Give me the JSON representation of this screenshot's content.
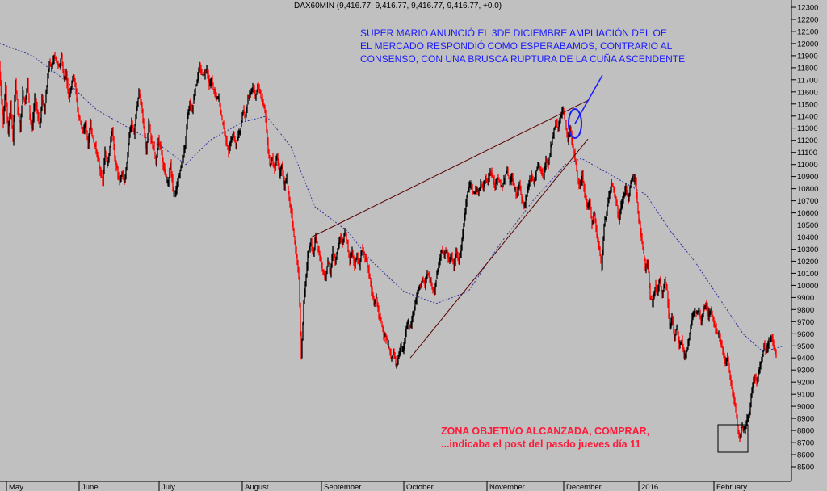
{
  "chart_data": {
    "type": "candlestick",
    "title": "DAX60MIN (9,416.77, 9,416.77, 9,416.77, 9,416.77, +0.0)",
    "ylim": [
      8450,
      12350
    ],
    "y_ticks": [
      8500,
      8600,
      8700,
      8800,
      8900,
      9000,
      9100,
      9200,
      9300,
      9400,
      9500,
      9600,
      9700,
      9800,
      9900,
      10000,
      10100,
      10200,
      10300,
      10400,
      10500,
      10600,
      10700,
      10800,
      10900,
      11000,
      11100,
      11200,
      11300,
      11400,
      11500,
      11600,
      11700,
      11800,
      11900,
      12000,
      12100,
      12200,
      12300
    ],
    "x_ticks": [
      "May",
      "June",
      "July",
      "August",
      "September",
      "October",
      "November",
      "December",
      "2016",
      "February"
    ],
    "grid": false,
    "price_path": [
      [
        0,
        11850
      ],
      [
        2,
        11600
      ],
      [
        5,
        11350
      ],
      [
        8,
        11650
      ],
      [
        11,
        11250
      ],
      [
        14,
        11500
      ],
      [
        17,
        11200
      ],
      [
        20,
        11700
      ],
      [
        23,
        11450
      ],
      [
        26,
        11300
      ],
      [
        29,
        11600
      ],
      [
        32,
        11500
      ],
      [
        35,
        11700
      ],
      [
        38,
        11400
      ],
      [
        41,
        11300
      ],
      [
        44,
        11550
      ],
      [
        47,
        11450
      ],
      [
        50,
        11300
      ],
      [
        53,
        11550
      ],
      [
        56,
        11450
      ],
      [
        59,
        11650
      ],
      [
        62,
        11850
      ],
      [
        65,
        11800
      ],
      [
        68,
        11900
      ],
      [
        71,
        11850
      ],
      [
        74,
        11800
      ],
      [
        77,
        11900
      ],
      [
        80,
        11700
      ],
      [
        83,
        11750
      ],
      [
        86,
        11550
      ],
      [
        89,
        11650
      ],
      [
        92,
        11750
      ],
      [
        95,
        11600
      ],
      [
        98,
        11400
      ],
      [
        101,
        11350
      ],
      [
        104,
        11250
      ],
      [
        107,
        11350
      ],
      [
        110,
        11150
      ],
      [
        113,
        11350
      ],
      [
        116,
        11200
      ],
      [
        119,
        11150
      ],
      [
        122,
        11050
      ],
      [
        125,
        10950
      ],
      [
        128,
        10850
      ],
      [
        131,
        11100
      ],
      [
        134,
        11000
      ],
      [
        137,
        11150
      ],
      [
        140,
        11300
      ],
      [
        143,
        11050
      ],
      [
        146,
        10950
      ],
      [
        149,
        10850
      ],
      [
        152,
        10950
      ],
      [
        155,
        10850
      ],
      [
        158,
        11000
      ],
      [
        161,
        11250
      ],
      [
        164,
        11350
      ],
      [
        167,
        11250
      ],
      [
        170,
        11450
      ],
      [
        173,
        11600
      ],
      [
        176,
        11500
      ],
      [
        179,
        11300
      ],
      [
        182,
        11100
      ],
      [
        185,
        11350
      ],
      [
        188,
        11200
      ],
      [
        191,
        11150
      ],
      [
        194,
        11000
      ],
      [
        197,
        11200
      ],
      [
        200,
        11150
      ],
      [
        203,
        11000
      ],
      [
        206,
        10900
      ],
      [
        209,
        10850
      ],
      [
        212,
        11000
      ],
      [
        215,
        10800
      ],
      [
        218,
        10750
      ],
      [
        221,
        10850
      ],
      [
        224,
        10950
      ],
      [
        227,
        11050
      ],
      [
        230,
        11150
      ],
      [
        233,
        11400
      ],
      [
        236,
        11500
      ],
      [
        239,
        11450
      ],
      [
        242,
        11600
      ],
      [
        245,
        11700
      ],
      [
        248,
        11800
      ],
      [
        251,
        11750
      ],
      [
        254,
        11750
      ],
      [
        257,
        11800
      ],
      [
        260,
        11650
      ],
      [
        263,
        11700
      ],
      [
        266,
        11600
      ],
      [
        269,
        11550
      ],
      [
        272,
        11550
      ],
      [
        275,
        11400
      ],
      [
        278,
        11300
      ],
      [
        281,
        11200
      ],
      [
        284,
        11100
      ],
      [
        287,
        11200
      ],
      [
        290,
        11250
      ],
      [
        293,
        11150
      ],
      [
        296,
        11250
      ],
      [
        299,
        11300
      ],
      [
        302,
        11450
      ],
      [
        305,
        11400
      ],
      [
        308,
        11550
      ],
      [
        311,
        11600
      ],
      [
        314,
        11650
      ],
      [
        317,
        11550
      ],
      [
        320,
        11650
      ],
      [
        323,
        11600
      ],
      [
        326,
        11500
      ],
      [
        329,
        11450
      ],
      [
        332,
        11200
      ],
      [
        335,
        11000
      ],
      [
        338,
        11050
      ],
      [
        341,
        10950
      ],
      [
        344,
        11100
      ],
      [
        347,
        10900
      ],
      [
        350,
        11000
      ],
      [
        353,
        10800
      ],
      [
        356,
        10900
      ],
      [
        359,
        10700
      ],
      [
        362,
        10600
      ],
      [
        365,
        10400
      ],
      [
        368,
        10250
      ],
      [
        371,
        10050
      ],
      [
        374,
        9400
      ],
      [
        377,
        9850
      ],
      [
        380,
        10100
      ],
      [
        383,
        10300
      ],
      [
        386,
        10350
      ],
      [
        389,
        10250
      ],
      [
        392,
        10400
      ],
      [
        395,
        10300
      ],
      [
        398,
        10200
      ],
      [
        401,
        10100
      ],
      [
        404,
        10050
      ],
      [
        407,
        10200
      ],
      [
        410,
        10100
      ],
      [
        413,
        10300
      ],
      [
        416,
        10200
      ],
      [
        419,
        10300
      ],
      [
        422,
        10400
      ],
      [
        425,
        10350
      ],
      [
        428,
        10450
      ],
      [
        431,
        10350
      ],
      [
        434,
        10200
      ],
      [
        437,
        10300
      ],
      [
        440,
        10150
      ],
      [
        443,
        10250
      ],
      [
        446,
        10150
      ],
      [
        449,
        10300
      ],
      [
        452,
        10250
      ],
      [
        455,
        10200
      ],
      [
        458,
        10100
      ],
      [
        461,
        9950
      ],
      [
        464,
        9850
      ],
      [
        467,
        9900
      ],
      [
        470,
        9750
      ],
      [
        473,
        9700
      ],
      [
        476,
        9600
      ],
      [
        479,
        9550
      ],
      [
        482,
        9500
      ],
      [
        485,
        9400
      ],
      [
        488,
        9450
      ],
      [
        491,
        9350
      ],
      [
        494,
        9400
      ],
      [
        497,
        9500
      ],
      [
        500,
        9450
      ],
      [
        503,
        9600
      ],
      [
        506,
        9700
      ],
      [
        509,
        9650
      ],
      [
        512,
        9750
      ],
      [
        515,
        9850
      ],
      [
        518,
        9950
      ],
      [
        521,
        10000
      ],
      [
        524,
        10050
      ],
      [
        527,
        10000
      ],
      [
        530,
        10100
      ],
      [
        533,
        10050
      ],
      [
        536,
        10000
      ],
      [
        539,
        9950
      ],
      [
        542,
        10100
      ],
      [
        545,
        10200
      ],
      [
        548,
        10300
      ],
      [
        551,
        10250
      ],
      [
        554,
        10300
      ],
      [
        557,
        10200
      ],
      [
        560,
        10250
      ],
      [
        563,
        10150
      ],
      [
        566,
        10300
      ],
      [
        569,
        10200
      ],
      [
        572,
        10300
      ],
      [
        575,
        10500
      ],
      [
        578,
        10700
      ],
      [
        581,
        10800
      ],
      [
        584,
        10850
      ],
      [
        587,
        10750
      ],
      [
        590,
        10800
      ],
      [
        593,
        10750
      ],
      [
        596,
        10850
      ],
      [
        599,
        10800
      ],
      [
        602,
        10900
      ],
      [
        605,
        10850
      ],
      [
        608,
        10950
      ],
      [
        611,
        10900
      ],
      [
        614,
        10800
      ],
      [
        617,
        10900
      ],
      [
        620,
        10850
      ],
      [
        623,
        10800
      ],
      [
        626,
        10900
      ],
      [
        629,
        10950
      ],
      [
        632,
        10850
      ],
      [
        635,
        10900
      ],
      [
        638,
        10800
      ],
      [
        641,
        10750
      ],
      [
        644,
        10850
      ],
      [
        647,
        10700
      ],
      [
        650,
        10650
      ],
      [
        653,
        10750
      ],
      [
        656,
        10850
      ],
      [
        659,
        10900
      ],
      [
        662,
        10850
      ],
      [
        665,
        10950
      ],
      [
        668,
        11000
      ],
      [
        671,
        10950
      ],
      [
        674,
        10900
      ],
      [
        677,
        11050
      ],
      [
        680,
        11000
      ],
      [
        683,
        11150
      ],
      [
        686,
        11250
      ],
      [
        689,
        11350
      ],
      [
        692,
        11300
      ],
      [
        695,
        11400
      ],
      [
        698,
        11450
      ],
      [
        701,
        11350
      ],
      [
        704,
        11200
      ],
      [
        707,
        11300
      ],
      [
        710,
        11150
      ],
      [
        713,
        11050
      ],
      [
        716,
        10900
      ],
      [
        719,
        10800
      ],
      [
        722,
        10900
      ],
      [
        725,
        10750
      ],
      [
        728,
        10650
      ],
      [
        731,
        10700
      ],
      [
        734,
        10500
      ],
      [
        737,
        10600
      ],
      [
        740,
        10400
      ],
      [
        743,
        10300
      ],
      [
        746,
        10150
      ],
      [
        749,
        10500
      ],
      [
        752,
        10600
      ],
      [
        755,
        10750
      ],
      [
        758,
        10850
      ],
      [
        761,
        10800
      ],
      [
        764,
        10700
      ],
      [
        767,
        10550
      ],
      [
        770,
        10650
      ],
      [
        773,
        10750
      ],
      [
        776,
        10800
      ],
      [
        779,
        10700
      ],
      [
        782,
        10850
      ],
      [
        785,
        10900
      ],
      [
        788,
        10850
      ],
      [
        791,
        10600
      ],
      [
        794,
        10450
      ],
      [
        797,
        10300
      ],
      [
        800,
        10150
      ],
      [
        803,
        10200
      ],
      [
        806,
        9900
      ],
      [
        809,
        9850
      ],
      [
        812,
        10000
      ],
      [
        815,
        9950
      ],
      [
        818,
        10050
      ],
      [
        821,
        9900
      ],
      [
        824,
        10050
      ],
      [
        827,
        9950
      ],
      [
        830,
        9650
      ],
      [
        833,
        9750
      ],
      [
        836,
        9550
      ],
      [
        839,
        9650
      ],
      [
        842,
        9500
      ],
      [
        845,
        9550
      ],
      [
        848,
        9400
      ],
      [
        851,
        9450
      ],
      [
        854,
        9550
      ],
      [
        857,
        9700
      ],
      [
        860,
        9800
      ],
      [
        863,
        9750
      ],
      [
        866,
        9800
      ],
      [
        869,
        9700
      ],
      [
        872,
        9800
      ],
      [
        875,
        9850
      ],
      [
        878,
        9750
      ],
      [
        881,
        9800
      ],
      [
        884,
        9700
      ],
      [
        887,
        9650
      ],
      [
        890,
        9600
      ],
      [
        893,
        9550
      ],
      [
        896,
        9450
      ],
      [
        899,
        9350
      ],
      [
        902,
        9400
      ],
      [
        905,
        9250
      ],
      [
        908,
        9100
      ],
      [
        911,
        9000
      ],
      [
        914,
        8850
      ],
      [
        917,
        8750
      ],
      [
        920,
        8850
      ],
      [
        923,
        8800
      ],
      [
        926,
        8900
      ],
      [
        929,
        8950
      ],
      [
        932,
        9150
      ],
      [
        935,
        9250
      ],
      [
        938,
        9200
      ],
      [
        941,
        9300
      ],
      [
        944,
        9400
      ],
      [
        947,
        9500
      ],
      [
        950,
        9450
      ],
      [
        953,
        9550
      ],
      [
        956,
        9580
      ],
      [
        959,
        9500
      ],
      [
        962,
        9420
      ]
    ],
    "moving_average": [
      [
        0,
        12000
      ],
      [
        40,
        11900
      ],
      [
        80,
        11700
      ],
      [
        120,
        11450
      ],
      [
        160,
        11300
      ],
      [
        200,
        11150
      ],
      [
        230,
        11000
      ],
      [
        260,
        11200
      ],
      [
        300,
        11350
      ],
      [
        330,
        11400
      ],
      [
        360,
        11150
      ],
      [
        390,
        10650
      ],
      [
        430,
        10450
      ],
      [
        460,
        10200
      ],
      [
        500,
        9950
      ],
      [
        540,
        9850
      ],
      [
        580,
        9950
      ],
      [
        620,
        10350
      ],
      [
        660,
        10700
      ],
      [
        700,
        11000
      ],
      [
        720,
        11050
      ],
      [
        760,
        10900
      ],
      [
        800,
        10750
      ],
      [
        830,
        10450
      ],
      [
        860,
        10200
      ],
      [
        890,
        9900
      ],
      [
        920,
        9600
      ],
      [
        945,
        9450
      ],
      [
        970,
        9500
      ]
    ],
    "trendlines": [
      {
        "from": [
          386,
          10400
        ],
        "to": [
          728,
          11530
        ]
      },
      {
        "from": [
          508,
          9400
        ],
        "to": [
          728,
          11210
        ]
      }
    ],
    "annotations": {
      "blue_text": "SUPER MARIO ANUNCIÓ EL 3DE DICIEMBRE AMPLIACIÓN DEL OE\nEL MERCADO RESPONDIÓ COMO ESPERABAMOS, CONTRARIO AL\nCONSENSO, CON UNA BRUSCA RUPTURA DE LA CUÑA ASCENDENTE",
      "red_text": "ZONA OBJETIVO ALCANZADA, COMPRAR,\n...indicaba el post del pasdo jueves día 11"
    }
  },
  "colors": {
    "background": "#c0c0c0",
    "up": "#000000",
    "down": "#ff0000",
    "ma": "#3030a0",
    "trend": "#5a0000",
    "blue_note": "#1a1aff",
    "red_note": "#ff1a3a"
  }
}
